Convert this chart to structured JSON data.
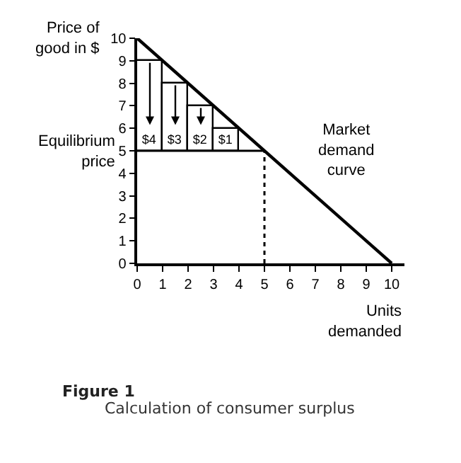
{
  "chart_data": {
    "type": "bar",
    "title": "Figure 1",
    "subtitle": "Calculation of consumer surplus",
    "xlabel": "Units demanded",
    "ylabel": "Price of good in $",
    "x": [
      0.5,
      1.5,
      2.5,
      3.5
    ],
    "series": [
      {
        "color": "#ffffff",
        "values": [
          4,
          3,
          2,
          1
        ],
        "base": [
          5,
          5,
          5,
          5
        ],
        "value_labels": [
          "$4",
          "$3",
          "$2",
          "$1"
        ]
      },
      {
        "type": "line",
        "name": "Market demand curve",
        "color": "#000000",
        "x": [
          0,
          10
        ],
        "values": [
          10,
          0
        ]
      }
    ],
    "ref_lines": [
      {
        "axis": "y",
        "value": 5,
        "label": "Equilibrium price",
        "color": "#000000",
        "line_style": "solid"
      },
      {
        "axis": "x",
        "value": 5,
        "color": "#000000",
        "line_style": "dotted"
      }
    ],
    "xlim": [
      0,
      10.5
    ],
    "ylim": [
      0,
      10
    ],
    "xticks": [
      0,
      1,
      2,
      3,
      4,
      5,
      6,
      7,
      8,
      9,
      10
    ],
    "yticks": [
      0,
      1,
      2,
      3,
      4,
      5,
      6,
      7,
      8,
      9,
      10
    ],
    "legend": false,
    "marker": "none"
  }
}
